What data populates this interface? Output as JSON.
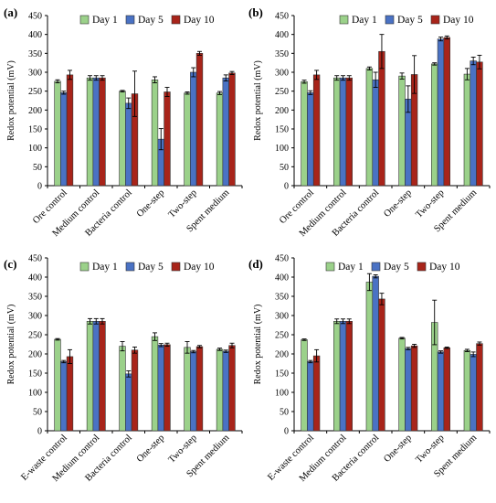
{
  "legend": [
    "Day 1",
    "Day 5",
    "Day 10"
  ],
  "colors": {
    "Day 1": "#9bd18a",
    "Day 5": "#4a72c4",
    "Day 10": "#a8241a"
  },
  "chart_data": [
    {
      "panel": "(a)",
      "type": "bar",
      "ylabel": "Redox potential (mV)",
      "ylim": [
        0,
        450
      ],
      "yticks": [
        0,
        50,
        100,
        150,
        200,
        250,
        300,
        350,
        400,
        450
      ],
      "categories": [
        "Ore control",
        "Medium control",
        "Bacteria control",
        "One-step",
        "Two-step",
        "Spent medium"
      ],
      "series": [
        {
          "name": "Day 1",
          "values": [
            276,
            285,
            250,
            280,
            245,
            245
          ],
          "errors": [
            4,
            6,
            2,
            8,
            3,
            4
          ]
        },
        {
          "name": "Day 5",
          "values": [
            246,
            285,
            218,
            123,
            300,
            285
          ],
          "errors": [
            4,
            6,
            14,
            28,
            12,
            8
          ]
        },
        {
          "name": "Day 10",
          "values": [
            293,
            285,
            243,
            248,
            350,
            298
          ],
          "errors": [
            12,
            6,
            60,
            12,
            5,
            4
          ]
        }
      ],
      "grid": false,
      "legend_position": "top"
    },
    {
      "panel": "(b)",
      "type": "bar",
      "ylabel": "Redox potential (mV)",
      "ylim": [
        0,
        450
      ],
      "yticks": [
        0,
        50,
        100,
        150,
        200,
        250,
        300,
        350,
        400,
        450
      ],
      "categories": [
        "Ore control",
        "Medium control",
        "Bacteria control",
        "One-step",
        "Two-step",
        "Spent medium"
      ],
      "series": [
        {
          "name": "Day 1",
          "values": [
            275,
            285,
            310,
            290,
            322,
            295
          ],
          "errors": [
            4,
            6,
            4,
            8,
            3,
            15
          ]
        },
        {
          "name": "Day 5",
          "values": [
            246,
            285,
            280,
            229,
            388,
            330
          ],
          "errors": [
            5,
            6,
            20,
            35,
            5,
            10
          ]
        },
        {
          "name": "Day 10",
          "values": [
            293,
            285,
            355,
            294,
            392,
            327
          ],
          "errors": [
            12,
            6,
            45,
            50,
            4,
            18
          ]
        }
      ],
      "grid": false,
      "legend_position": "top"
    },
    {
      "panel": "(c)",
      "type": "bar",
      "ylabel": "Redox potential (mV)",
      "ylim": [
        0,
        450
      ],
      "yticks": [
        0,
        50,
        100,
        150,
        200,
        250,
        300,
        350,
        400,
        450
      ],
      "categories": [
        "E-waste control",
        "Medium control",
        "Bacteria control",
        "One-step",
        "Two-step",
        "Spent medium"
      ],
      "series": [
        {
          "name": "Day 1",
          "values": [
            238,
            285,
            220,
            245,
            217,
            212
          ],
          "errors": [
            2,
            7,
            12,
            10,
            15,
            3
          ]
        },
        {
          "name": "Day 5",
          "values": [
            180,
            285,
            148,
            223,
            206,
            207
          ],
          "errors": [
            3,
            7,
            8,
            4,
            3,
            3
          ]
        },
        {
          "name": "Day 10",
          "values": [
            193,
            285,
            210,
            224,
            219,
            222
          ],
          "errors": [
            18,
            7,
            8,
            4,
            3,
            6
          ]
        }
      ],
      "grid": false,
      "legend_position": "top"
    },
    {
      "panel": "(d)",
      "type": "bar",
      "ylabel": "Redox potential (mV)",
      "ylim": [
        0,
        450
      ],
      "yticks": [
        0,
        50,
        100,
        150,
        200,
        250,
        300,
        350,
        400,
        450
      ],
      "categories": [
        "E-waste control",
        "Medium control",
        "Bacteria control",
        "One-step",
        "Two-step",
        "Spent medium"
      ],
      "series": [
        {
          "name": "Day 1",
          "values": [
            237,
            285,
            387,
            241,
            282,
            209
          ],
          "errors": [
            2,
            6,
            22,
            2,
            58,
            3
          ]
        },
        {
          "name": "Day 5",
          "values": [
            180,
            285,
            402,
            214,
            205,
            199
          ],
          "errors": [
            3,
            6,
            4,
            3,
            3,
            6
          ]
        },
        {
          "name": "Day 10",
          "values": [
            195,
            285,
            343,
            221,
            216,
            227
          ],
          "errors": [
            16,
            6,
            15,
            4,
            2,
            4
          ]
        }
      ],
      "grid": false,
      "legend_position": "top"
    }
  ]
}
